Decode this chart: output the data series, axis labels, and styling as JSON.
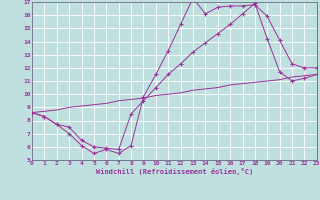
{
  "xlabel": "Windchill (Refroidissement éolien,°C)",
  "bg_color": "#c0e0e0",
  "grid_color": "#ffffff",
  "line_color": "#993399",
  "spine_color": "#666688",
  "xmin": 0,
  "xmax": 23,
  "ymin": 5,
  "ymax": 17,
  "yticks": [
    5,
    6,
    7,
    8,
    9,
    10,
    11,
    12,
    13,
    14,
    15,
    16,
    17
  ],
  "xticks": [
    0,
    1,
    2,
    3,
    4,
    5,
    6,
    7,
    8,
    9,
    10,
    11,
    12,
    13,
    14,
    15,
    16,
    17,
    18,
    19,
    20,
    21,
    22,
    23
  ],
  "line1_x": [
    0,
    1,
    2,
    3,
    4,
    5,
    6,
    7,
    8,
    9,
    10,
    11,
    12,
    13,
    14,
    15,
    16,
    17,
    18,
    19,
    20,
    21,
    22,
    23
  ],
  "line1_y": [
    8.6,
    8.3,
    7.7,
    7.0,
    6.1,
    5.5,
    5.8,
    5.5,
    6.1,
    9.8,
    11.5,
    13.3,
    15.3,
    17.3,
    16.1,
    16.6,
    16.7,
    16.7,
    16.8,
    15.9,
    14.1,
    12.3,
    12.0,
    12.0
  ],
  "line2_x": [
    0,
    1,
    2,
    3,
    4,
    5,
    6,
    7,
    8,
    9,
    10,
    11,
    12,
    13,
    14,
    15,
    16,
    17,
    18,
    19,
    20,
    21,
    22,
    23
  ],
  "line2_y": [
    8.6,
    8.3,
    7.7,
    7.5,
    6.5,
    6.0,
    5.9,
    5.8,
    8.5,
    9.5,
    10.5,
    11.5,
    12.3,
    13.2,
    13.9,
    14.6,
    15.3,
    16.1,
    16.9,
    14.2,
    11.7,
    11.0,
    11.2,
    11.5
  ],
  "line3_x": [
    0,
    1,
    2,
    3,
    4,
    5,
    6,
    7,
    8,
    9,
    10,
    11,
    12,
    13,
    14,
    15,
    16,
    17,
    18,
    19,
    20,
    21,
    22,
    23
  ],
  "line3_y": [
    8.6,
    8.7,
    8.8,
    9.0,
    9.1,
    9.2,
    9.3,
    9.5,
    9.6,
    9.7,
    9.9,
    10.0,
    10.1,
    10.3,
    10.4,
    10.5,
    10.7,
    10.8,
    10.9,
    11.0,
    11.1,
    11.3,
    11.4,
    11.5
  ]
}
